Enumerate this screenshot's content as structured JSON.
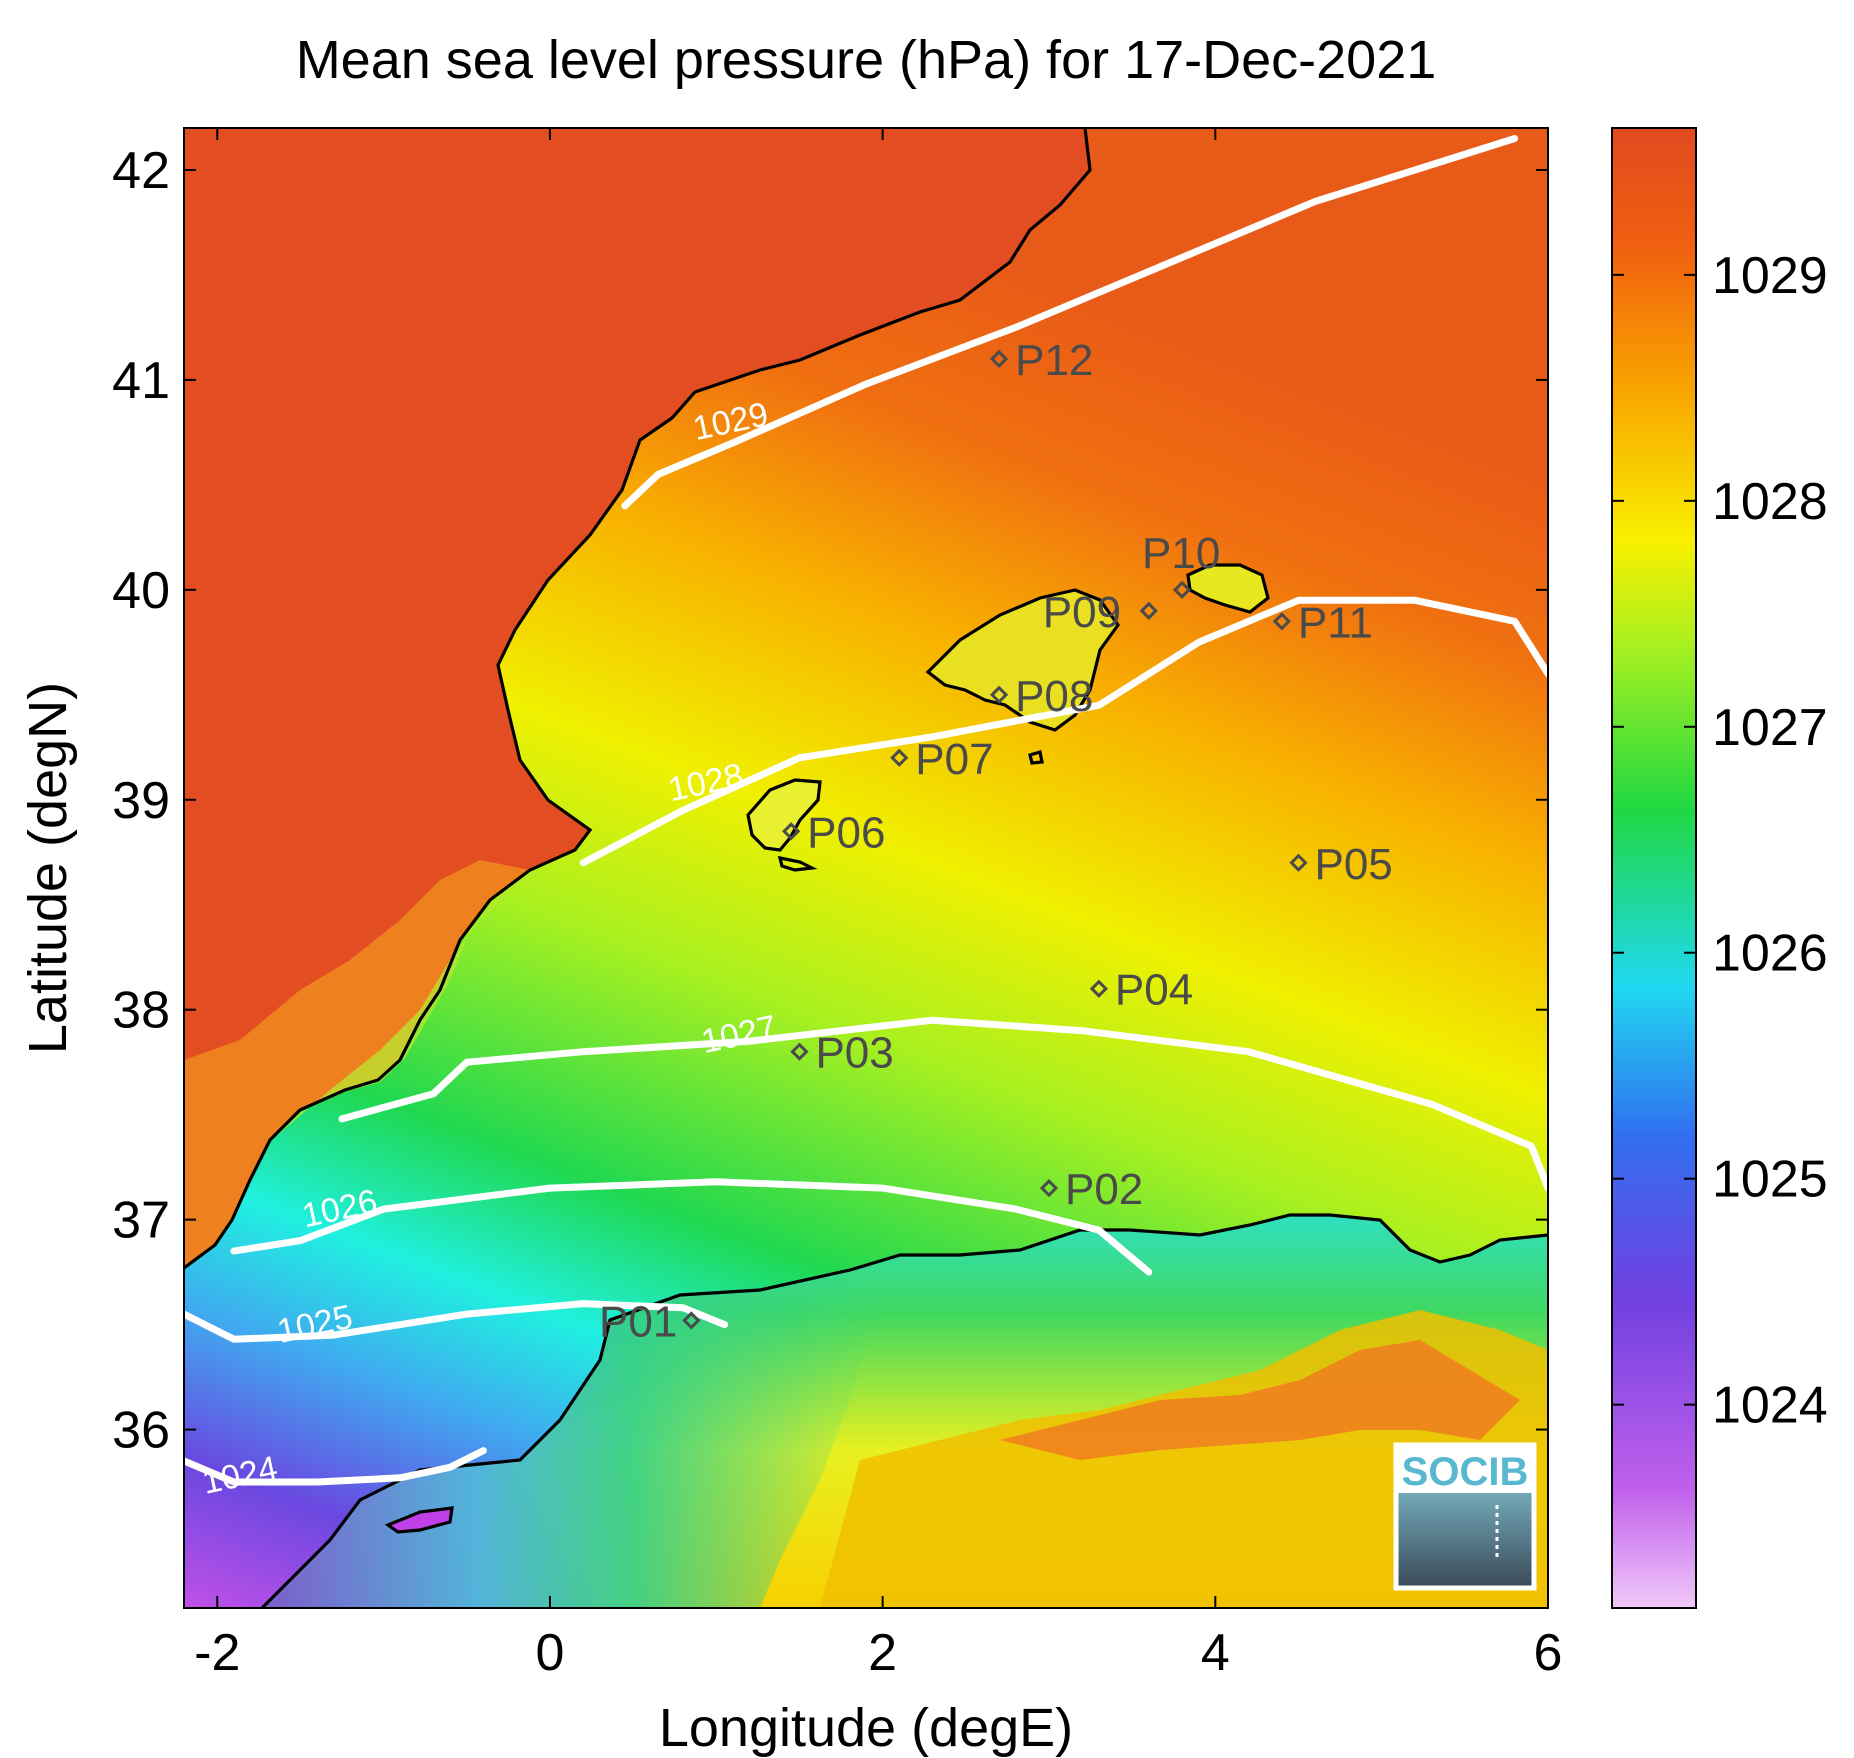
{
  "title": "Mean sea level pressure (hPa) for 17-Dec-2021",
  "logo_text": "SOCIB",
  "chart_data": {
    "type": "heatmap",
    "title": "Mean sea level pressure (hPa) for 17-Dec-2021",
    "xlabel": "Longitude (degE)",
    "ylabel": "Latitude (degN)",
    "xlim": [
      -2.2,
      6.0
    ],
    "ylim": [
      35.15,
      42.2
    ],
    "xticks": [
      -2,
      0,
      2,
      4,
      6
    ],
    "xtick_labels": [
      "-2",
      "0",
      "2",
      "4",
      "6"
    ],
    "yticks": [
      36,
      37,
      38,
      39,
      40,
      41,
      42
    ],
    "ytick_labels": [
      "36",
      "37",
      "38",
      "39",
      "40",
      "41",
      "42"
    ],
    "colorbar": {
      "range": [
        1023.1,
        1029.65
      ],
      "ticks": [
        1024,
        1025,
        1026,
        1027,
        1028,
        1029
      ],
      "tick_labels": [
        "1024",
        "1025",
        "1026",
        "1027",
        "1028",
        "1029"
      ],
      "colors": [
        "#e8c0f0",
        "#b040e8",
        "#5a40e0",
        "#2aa0f0",
        "#20f0e0",
        "#20d840",
        "#c8f020",
        "#f8f000",
        "#f8a000",
        "#f06010",
        "#e04a20"
      ]
    },
    "contours": [
      {
        "level": 1024,
        "label": "1024",
        "points": [
          [
            -2.2,
            35.85
          ],
          [
            -1.9,
            35.75
          ],
          [
            -1.4,
            35.75
          ],
          [
            -0.9,
            35.77
          ],
          [
            -0.6,
            35.82
          ],
          [
            -0.4,
            35.9
          ]
        ],
        "label_at": [
          -1.85,
          35.73
        ]
      },
      {
        "level": 1025,
        "label": "1025",
        "points": [
          [
            -2.2,
            36.55
          ],
          [
            -1.9,
            36.43
          ],
          [
            -1.3,
            36.45
          ],
          [
            -0.5,
            36.55
          ],
          [
            0.2,
            36.6
          ],
          [
            0.8,
            36.58
          ],
          [
            1.05,
            36.5
          ]
        ],
        "label_at": [
          -1.4,
          36.45
        ]
      },
      {
        "level": 1026,
        "label": "1026",
        "points": [
          [
            -1.9,
            36.85
          ],
          [
            -1.5,
            36.9
          ],
          [
            -1.0,
            37.05
          ],
          [
            0.0,
            37.15
          ],
          [
            1.0,
            37.18
          ],
          [
            2.0,
            37.15
          ],
          [
            2.8,
            37.05
          ],
          [
            3.3,
            36.95
          ],
          [
            3.6,
            36.75
          ]
        ],
        "label_at": [
          -1.25,
          37.0
        ]
      },
      {
        "level": 1027,
        "label": "1027",
        "points": [
          [
            -1.25,
            37.48
          ],
          [
            -0.7,
            37.6
          ],
          [
            -0.5,
            37.75
          ],
          [
            0.2,
            37.8
          ],
          [
            1.2,
            37.85
          ],
          [
            2.3,
            37.95
          ],
          [
            3.2,
            37.9
          ],
          [
            4.2,
            37.8
          ],
          [
            5.3,
            37.55
          ],
          [
            5.9,
            37.35
          ],
          [
            6.0,
            37.15
          ]
        ],
        "label_at": [
          1.15,
          37.83
        ]
      },
      {
        "level": 1028,
        "label": "1028",
        "points": [
          [
            0.2,
            38.7
          ],
          [
            0.8,
            38.95
          ],
          [
            1.5,
            39.2
          ],
          [
            2.3,
            39.3
          ],
          [
            3.3,
            39.45
          ],
          [
            3.9,
            39.75
          ],
          [
            4.5,
            39.95
          ],
          [
            5.2,
            39.95
          ],
          [
            5.8,
            39.85
          ],
          [
            6.0,
            39.6
          ]
        ],
        "label_at": [
          0.95,
          39.03
        ]
      },
      {
        "level": 1029,
        "label": "1029",
        "points": [
          [
            0.45,
            40.4
          ],
          [
            0.65,
            40.55
          ],
          [
            1.1,
            40.7
          ],
          [
            1.9,
            40.98
          ],
          [
            2.8,
            41.25
          ],
          [
            3.7,
            41.55
          ],
          [
            4.6,
            41.85
          ],
          [
            5.4,
            42.05
          ],
          [
            5.8,
            42.15
          ]
        ],
        "label_at": [
          1.1,
          40.75
        ]
      }
    ],
    "stations": [
      {
        "name": "P01",
        "lon": 0.85,
        "lat": 36.52
      },
      {
        "name": "P02",
        "lon": 3.0,
        "lat": 37.15
      },
      {
        "name": "P03",
        "lon": 1.5,
        "lat": 37.8
      },
      {
        "name": "P04",
        "lon": 3.3,
        "lat": 38.1
      },
      {
        "name": "P05",
        "lon": 4.5,
        "lat": 38.7
      },
      {
        "name": "P06",
        "lon": 1.45,
        "lat": 38.85
      },
      {
        "name": "P07",
        "lon": 2.1,
        "lat": 39.2
      },
      {
        "name": "P08",
        "lon": 2.7,
        "lat": 39.5
      },
      {
        "name": "P09",
        "lon": 3.6,
        "lat": 39.9
      },
      {
        "name": "P10",
        "lon": 3.8,
        "lat": 40.0
      },
      {
        "name": "P11",
        "lon": 4.4,
        "lat": 39.85
      },
      {
        "name": "P12",
        "lon": 2.7,
        "lat": 41.1
      }
    ],
    "grid": false
  }
}
